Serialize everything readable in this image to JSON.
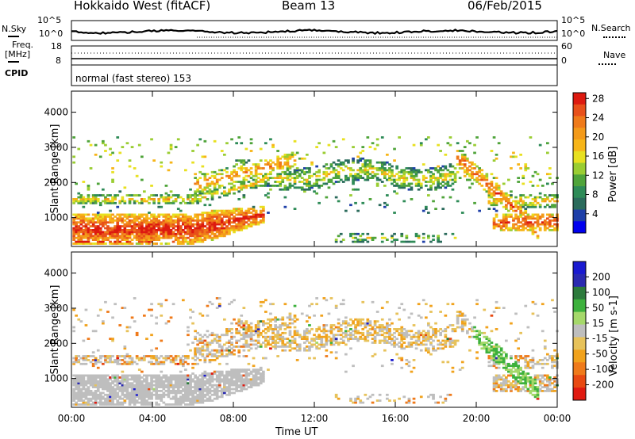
{
  "header": {
    "station": "Hokkaido West (fitACF)",
    "beam": "Beam 13",
    "date": "06/Feb/2015"
  },
  "panels": {
    "nsky": {
      "label": "N.Sky",
      "tick_top": "10^5",
      "tick_bottom": "10^0"
    },
    "nsearch": {
      "label": "N.Search",
      "tick_top": "10^5",
      "tick_bottom": "10^0"
    },
    "freq": {
      "label_line1": "Freq.",
      "label_line2": "[MHz]",
      "tick_top": "18",
      "tick_bottom": "8"
    },
    "nave": {
      "label": "Nave",
      "tick_top": "60",
      "tick_bottom": "0"
    },
    "cpid": {
      "label": "CPID",
      "mode": "normal (fast stereo) 153"
    }
  },
  "colors": {
    "power": [
      "#0000ee",
      "#1e3fa8",
      "#2b6b5c",
      "#2e8b57",
      "#4fa43a",
      "#9acd32",
      "#e8e020",
      "#f7b518",
      "#f39a1a",
      "#ef7a1a",
      "#e8501a",
      "#dd1a10"
    ],
    "velocity": [
      "#1a1ad0",
      "#2a2ab0",
      "#2c7a3c",
      "#3db13d",
      "#a5d86a",
      "#bebebe",
      "#e7c25a",
      "#f1a21c",
      "#ef7a1a",
      "#e84a12",
      "#e01a10"
    ]
  },
  "chart_data": [
    {
      "type": "heatmap",
      "name": "power",
      "ylabel": "Slant Range [km]",
      "ylim": [
        180,
        4600
      ],
      "yticks": [
        "1000",
        "2000",
        "3000",
        "4000"
      ],
      "xlim_hours": [
        0,
        24
      ],
      "xticks": [
        "00:00",
        "04:00",
        "08:00",
        "12:00",
        "16:00",
        "20:00",
        "00:00"
      ],
      "colorbar_label": "Power [dB]",
      "colorbar_ticks": [
        "4",
        "8",
        "12",
        "16",
        "20",
        "24",
        "28"
      ],
      "colorbar_range": [
        0,
        30
      ]
    },
    {
      "type": "heatmap",
      "name": "velocity",
      "ylabel": "Slant Range [km]",
      "ylim": [
        180,
        4600
      ],
      "yticks": [
        "1000",
        "2000",
        "3000",
        "4000"
      ],
      "xlim_hours": [
        0,
        24
      ],
      "xticks": [
        "00:00",
        "04:00",
        "08:00",
        "12:00",
        "16:00",
        "20:00",
        "00:00"
      ],
      "xlabel": "Time UT",
      "colorbar_label": "Velocity [m s-1]",
      "colorbar_ticks": [
        "200",
        "100",
        "50",
        "15",
        "-15",
        "-50",
        "-100",
        "-200"
      ]
    }
  ]
}
